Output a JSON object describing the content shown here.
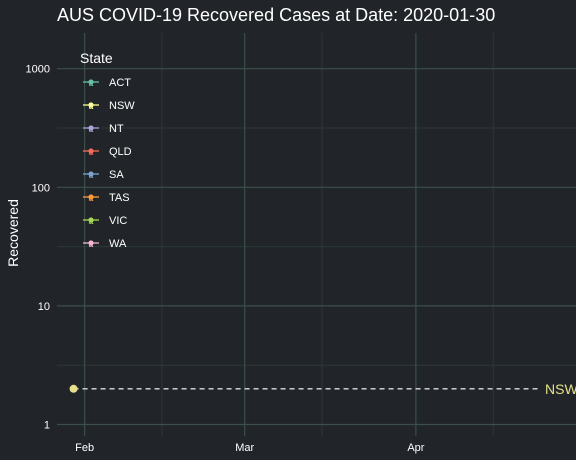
{
  "theme": {
    "background": "#212529",
    "grid_major": "#3a4f4a",
    "grid_minor": "#2c3836",
    "text": "#ffffff"
  },
  "chart_data": {
    "type": "line",
    "title": "AUS COVID-19 Recovered Cases at Date: 2020-01-30",
    "xlabel": "",
    "ylabel": "Recovered",
    "x_axis": {
      "type": "date",
      "range": [
        "2020-01-27",
        "2020-04-30"
      ],
      "ticks": [
        {
          "value": "2020-02-01",
          "label": "Feb"
        },
        {
          "value": "2020-03-01",
          "label": "Mar"
        },
        {
          "value": "2020-04-01",
          "label": "Apr"
        }
      ],
      "minor_ticks": [
        "2020-02-15",
        "2020-03-15",
        "2020-04-15"
      ]
    },
    "y_axis": {
      "scale": "log10",
      "range": [
        0.8,
        2000
      ],
      "ticks": [
        {
          "value": 1,
          "label": "1"
        },
        {
          "value": 10,
          "label": "10"
        },
        {
          "value": 100,
          "label": "100"
        },
        {
          "value": 1000,
          "label": "1000"
        }
      ]
    },
    "grid": true,
    "legend": {
      "title": "State",
      "position": "top-left",
      "entries": [
        {
          "label": "ACT",
          "color": "#66c2a5"
        },
        {
          "label": "NSW",
          "color": "#ffff99"
        },
        {
          "label": "NT",
          "color": "#a6a6d8"
        },
        {
          "label": "QLD",
          "color": "#f46d5a"
        },
        {
          "label": "SA",
          "color": "#7aa6d1"
        },
        {
          "label": "TAS",
          "color": "#fd9b3c"
        },
        {
          "label": "VIC",
          "color": "#a6d854"
        },
        {
          "label": "WA",
          "color": "#f7b6d2"
        }
      ]
    },
    "series": [
      {
        "name": "NSW",
        "color": "#e6e08a",
        "points": [
          {
            "x": "2020-01-30",
            "y": 2
          }
        ],
        "reference_line": {
          "y": 2,
          "style": "dashed",
          "color": "#dcdcdc"
        },
        "end_label": "NSW"
      }
    ]
  }
}
